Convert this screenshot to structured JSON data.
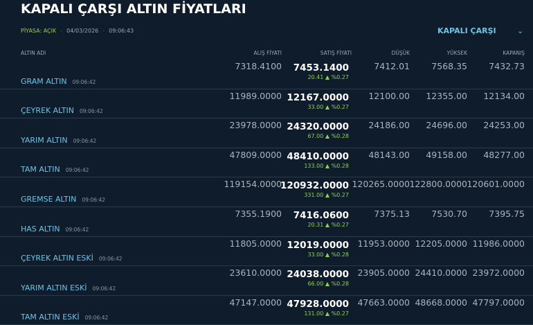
{
  "header": {
    "title": "KAPALI ÇARŞI ALTIN FİYATLARI",
    "market_status": "PİYASA: AÇIK",
    "date": "04/03/2026",
    "time": "09:06:43",
    "market_select": "KAPALI ÇARŞI",
    "chevron_icon": "chevron-down-icon"
  },
  "columns": [
    "ALTIN ADI",
    "ALIŞ FİYATI",
    "SATIŞ FİYATI",
    "DÜŞÜK",
    "YÜKSEK",
    "KAPANIŞ"
  ],
  "colors": {
    "accent": "#6ec3e6",
    "up": "#8fd14f",
    "background": "#0f1c2b"
  },
  "rows": [
    {
      "name": "GRAM ALTIN",
      "time": "09:06:42",
      "buy": "7318.4100",
      "sell": "7453.1400",
      "change": "20.41 ▲ %0.27",
      "low": "7412.01",
      "high": "7568.35",
      "close": "7432.73"
    },
    {
      "name": "ÇEYREK ALTIN",
      "time": "09:06:42",
      "buy": "11989.0000",
      "sell": "12167.0000",
      "change": "33.00 ▲ %0.27",
      "low": "12100.00",
      "high": "12355.00",
      "close": "12134.00"
    },
    {
      "name": "YARIM ALTIN",
      "time": "09:06:42",
      "buy": "23978.0000",
      "sell": "24320.0000",
      "change": "67.00 ▲ %0.28",
      "low": "24186.00",
      "high": "24696.00",
      "close": "24253.00"
    },
    {
      "name": "TAM ALTIN",
      "time": "09:06:42",
      "buy": "47809.0000",
      "sell": "48410.0000",
      "change": "133.00 ▲ %0.28",
      "low": "48143.00",
      "high": "49158.00",
      "close": "48277.00"
    },
    {
      "name": "GREMSE ALTIN",
      "time": "09:06:42",
      "buy": "119154.0000",
      "sell": "120932.0000",
      "change": "331.00 ▲ %0.27",
      "low": "120265.0000",
      "high": "122800.0000",
      "close": "120601.0000"
    },
    {
      "name": "HAS ALTIN",
      "time": "09:06:42",
      "buy": "7355.1900",
      "sell": "7416.0600",
      "change": "20.31 ▲ %0.27",
      "low": "7375.13",
      "high": "7530.70",
      "close": "7395.75"
    },
    {
      "name": "ÇEYREK ALTIN ESKİ",
      "time": "09:06:42",
      "buy": "11805.0000",
      "sell": "12019.0000",
      "change": "33.00 ▲ %0.28",
      "low": "11953.0000",
      "high": "12205.0000",
      "close": "11986.0000"
    },
    {
      "name": "YARIM ALTIN ESKİ",
      "time": "09:06:42",
      "buy": "23610.0000",
      "sell": "24038.0000",
      "change": "66.00 ▲ %0.28",
      "low": "23905.0000",
      "high": "24410.0000",
      "close": "23972.0000"
    },
    {
      "name": "TAM ALTIN ESKİ",
      "time": "09:06:42",
      "buy": "47147.0000",
      "sell": "47928.0000",
      "change": "131.00 ▲ %0.27",
      "low": "47663.0000",
      "high": "48668.0000",
      "close": "47797.0000"
    }
  ]
}
